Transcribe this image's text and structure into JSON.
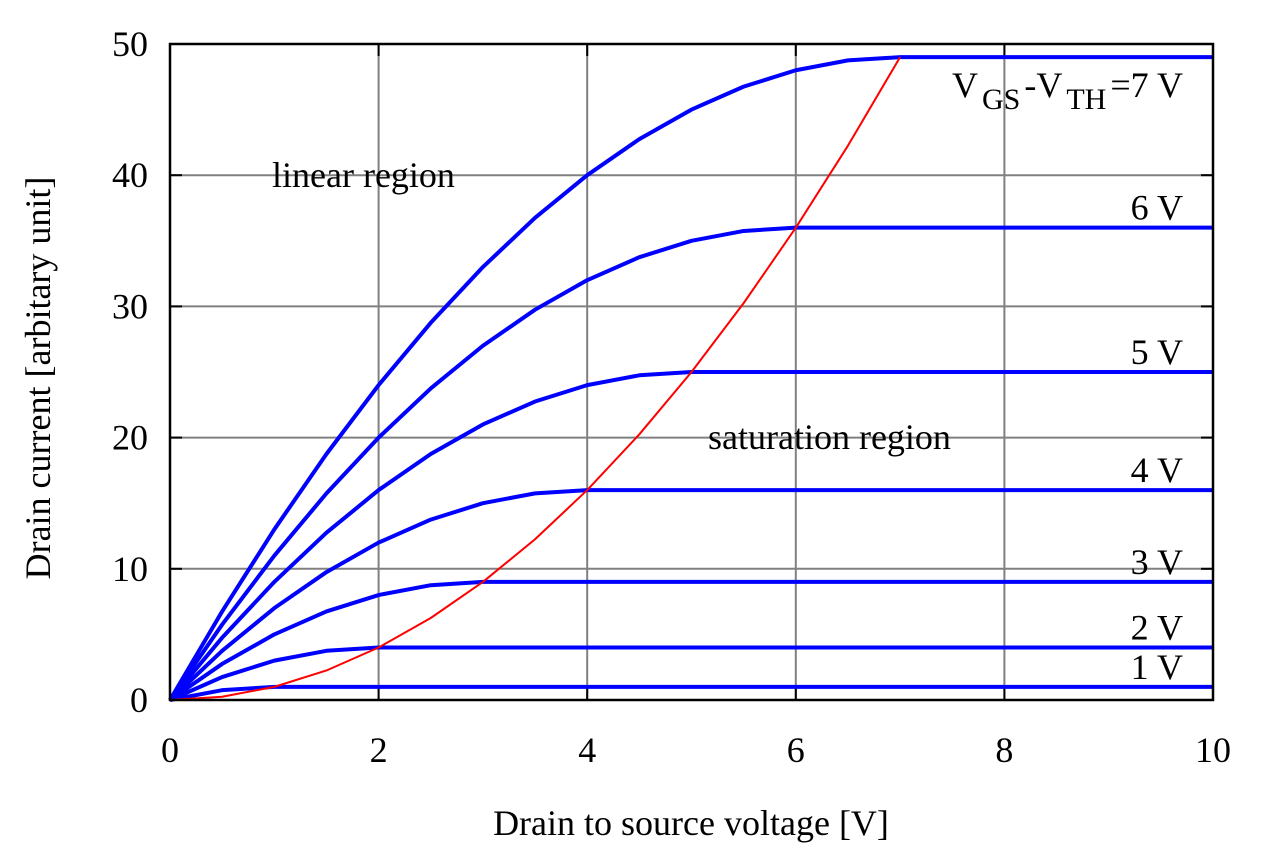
{
  "chart_data": {
    "type": "line",
    "x_label": "Drain to source voltage [V]",
    "y_label": "Drain current [arbitary unit]",
    "x": [
      0,
      0.5,
      1,
      1.5,
      2,
      2.5,
      3,
      3.5,
      4,
      4.5,
      5,
      5.5,
      6,
      6.5,
      7,
      7.5,
      8,
      8.5,
      9,
      9.5,
      10
    ],
    "series": [
      {
        "name": "1 V",
        "color": "#0000ff",
        "values": [
          0,
          0.75,
          1,
          1,
          1,
          1,
          1,
          1,
          1,
          1,
          1,
          1,
          1,
          1,
          1,
          1,
          1,
          1,
          1,
          1,
          1
        ]
      },
      {
        "name": "2 V",
        "color": "#0000ff",
        "values": [
          0,
          1.75,
          3,
          3.75,
          4,
          4,
          4,
          4,
          4,
          4,
          4,
          4,
          4,
          4,
          4,
          4,
          4,
          4,
          4,
          4,
          4
        ]
      },
      {
        "name": "3 V",
        "color": "#0000ff",
        "values": [
          0,
          2.75,
          5,
          6.75,
          8,
          8.75,
          9,
          9,
          9,
          9,
          9,
          9,
          9,
          9,
          9,
          9,
          9,
          9,
          9,
          9,
          9
        ]
      },
      {
        "name": "4 V",
        "color": "#0000ff",
        "values": [
          0,
          3.75,
          7,
          9.75,
          12,
          13.75,
          15,
          15.75,
          16,
          16,
          16,
          16,
          16,
          16,
          16,
          16,
          16,
          16,
          16,
          16,
          16
        ]
      },
      {
        "name": "5 V",
        "color": "#0000ff",
        "values": [
          0,
          4.75,
          9,
          12.75,
          16,
          18.75,
          21,
          22.75,
          24,
          24.75,
          25,
          25,
          25,
          25,
          25,
          25,
          25,
          25,
          25,
          25,
          25
        ]
      },
      {
        "name": "6 V",
        "color": "#0000ff",
        "values": [
          0,
          5.75,
          11,
          15.75,
          20,
          23.75,
          27,
          29.75,
          32,
          33.75,
          35,
          35.75,
          36,
          36,
          36,
          36,
          36,
          36,
          36,
          36,
          36
        ]
      },
      {
        "name": [
          "V",
          "GS",
          "-V",
          "TH",
          "=7 V"
        ],
        "color": "#0000ff",
        "values": [
          0,
          6.75,
          13,
          18.75,
          24,
          28.75,
          33,
          36.75,
          40,
          42.75,
          45,
          46.75,
          48,
          48.75,
          49,
          49,
          49,
          49,
          49,
          49,
          49
        ]
      },
      {
        "color": "#ff0000",
        "values": [
          0,
          0.25,
          1,
          2.25,
          4,
          6.25,
          9,
          12.25,
          16,
          20.25,
          25,
          30.25,
          36,
          42.25,
          49,
          null,
          null,
          null,
          null,
          null,
          null
        ]
      }
    ],
    "annotations": [
      "linear region",
      "saturation region"
    ],
    "xlim": [
      0,
      10
    ],
    "xticks": [
      0,
      2,
      4,
      6,
      8,
      10
    ],
    "ylim": [
      0,
      50
    ],
    "yticks": [
      0,
      10,
      20,
      30,
      40,
      50
    ],
    "grid": true
  }
}
